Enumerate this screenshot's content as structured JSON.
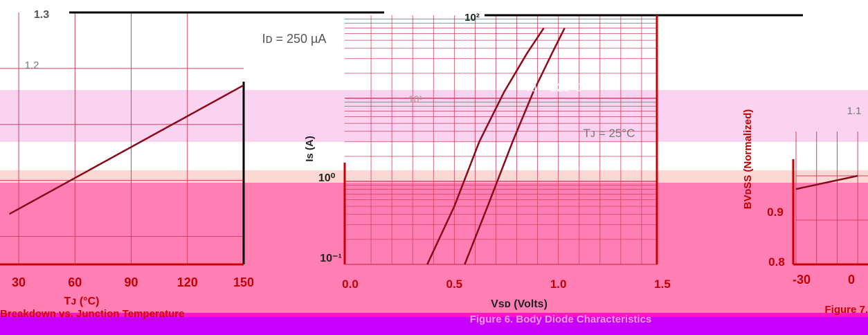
{
  "colors": {
    "band_light": "#f9d3ef",
    "band_peach": "#fbd8d4",
    "band_pink": "#ff7fb5",
    "band_magenta": "#ff14c8",
    "band_purple": "#c800ff",
    "axis": "#cc0000",
    "text": "#c00000",
    "curve": "#8a0a1a",
    "grid": "#d44060"
  },
  "chart_data": [
    {
      "type": "line",
      "id": "left",
      "title": "",
      "annotation": "I_D = 250 µA",
      "xlabel": "T_J (°C)",
      "ylabel": "",
      "x_ticks": [
        "30",
        "60",
        "90",
        "120",
        "150"
      ],
      "y_ticks": [
        "1.3",
        "1.2"
      ],
      "xlim": [
        30,
        150
      ],
      "caption": "Breakdown vs. Junction Temperature",
      "grid": true,
      "series": [
        {
          "x": [
            25,
            150
          ],
          "y": [
            0.94,
            1.17
          ]
        }
      ]
    },
    {
      "type": "line",
      "id": "middle",
      "title": "",
      "annotations": [
        "T_J = 125°C",
        "T_J = 25°C"
      ],
      "xlabel": "V_SD (Volts)",
      "ylabel": "I_S (A)",
      "x_ticks": [
        "0.0",
        "0.5",
        "1.0",
        "1.5"
      ],
      "y_ticks": [
        "10²",
        "10¹",
        "10⁰",
        "10⁻¹"
      ],
      "xlim": [
        0,
        1.5
      ],
      "ylim": [
        0.1,
        100
      ],
      "y_scale": "log",
      "caption": "Figure 6. Body Diode Characteristics",
      "grid": true,
      "series": [
        {
          "name": "T_J = 125°C",
          "x": [
            0.37,
            0.5,
            0.62,
            0.74,
            0.85,
            0.93
          ],
          "y": [
            0.1,
            0.5,
            3,
            12,
            35,
            70
          ]
        },
        {
          "name": "T_J = 25°C",
          "x": [
            0.55,
            0.66,
            0.78,
            0.88,
            0.97,
            1.03
          ],
          "y": [
            0.1,
            0.5,
            3,
            12,
            35,
            70
          ]
        }
      ]
    },
    {
      "type": "line",
      "id": "right",
      "title": "",
      "xlabel": "",
      "ylabel": "BV_DSS (Normalized)",
      "x_ticks": [
        "-30",
        "0"
      ],
      "y_ticks": [
        "1.1",
        "0.9",
        "0.8"
      ],
      "caption": "Figure 7.",
      "grid": true,
      "series": [
        {
          "x": [
            -30,
            0
          ],
          "y": [
            0.97,
            1.0
          ]
        }
      ]
    }
  ]
}
